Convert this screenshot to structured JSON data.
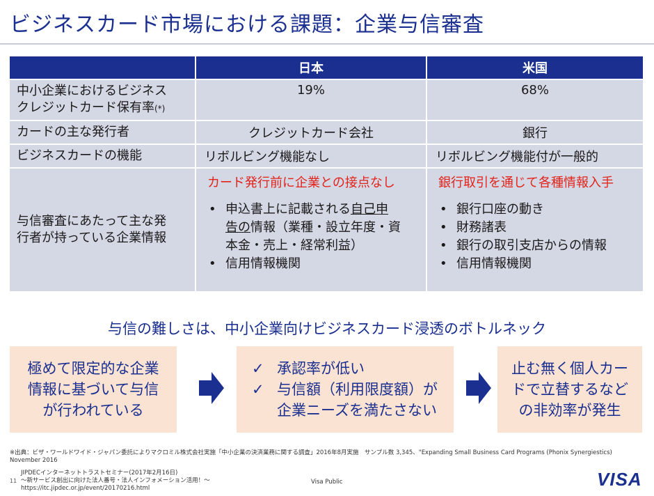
{
  "title": "ビジネスカード市場における課題：企業与信審査",
  "table": {
    "headers": [
      "",
      "日本",
      "米国"
    ],
    "rows": [
      {
        "label_line1": "中小企業におけるビジネス",
        "label_line2": "クレジットカード保有率",
        "label_note": "(*)",
        "japan": "19%",
        "us": "68%"
      },
      {
        "label": "カードの主な発行者",
        "japan": "クレジットカード会社",
        "us": "銀行"
      },
      {
        "label": "ビジネスカードの機能",
        "japan": "リボルビング機能なし",
        "us": "リボルビング機能付が一般的"
      },
      {
        "label_line1": "与信審査にあたって主な発",
        "label_line2": "行者が持っている企業情報",
        "japan_heading": "カード発行前に企業との接点なし",
        "japan_bullets": [
          {
            "line1_pre": "申込書上に記載される",
            "line1_underline": "自己申",
            "line2_underline": "告の",
            "line2_post": "情報（業種・設立年度・資",
            "line3": "本金・売上・経常利益）"
          },
          {
            "text": "信用情報機関"
          }
        ],
        "us_heading": "銀行取引を通じて各種情報入手",
        "us_bullets": [
          "銀行口座の動き",
          "財務諸表",
          "銀行の取引支店からの情報",
          "信用情報機関"
        ]
      }
    ]
  },
  "bottleneck": "与信の難しさは、中小企業向けビジネスカード浸透のボトルネック",
  "boxes": {
    "box1_lines": [
      "極めて限定的な企業",
      "情報に基づいて与信",
      "が行われている"
    ],
    "box2_items": [
      {
        "lines": [
          "承認率が低い"
        ]
      },
      {
        "lines": [
          "与信額（利用限度額）が",
          "企業ニーズを満たさない"
        ]
      }
    ],
    "box3_lines": [
      "止む無く個人カー",
      "ドで立替するなど",
      "の非効率が発生"
    ]
  },
  "footer": {
    "source_line1": "※出典：ビザ・ワールドワイド・ジャパン委託によりマクロミル株式会社実施「中小企業の決済業務に関する調査」2016年8月実施　サンプル数 3,345、\"Expanding Small Business Card Programs (Phonix Synergiestics)",
    "source_line2": "November 2016",
    "page_number": "11",
    "seminar_line1": "JIPDECインターネットトラストセミナー(2017年2月16日)",
    "seminar_line2": "～新サービス創出に向けた法人番号・法人インフォメーション活用！～",
    "seminar_line3": "https://itc.jipdec.or.jp/event/20170216.html",
    "visa_public": "Visa Public",
    "logo": "VISA"
  },
  "colors": {
    "navy": "#1a2f8f",
    "cell_bg": "#d4d7e4",
    "box_bg": "#fbe3d3",
    "red": "#e2231a"
  },
  "icons": [
    "check-icon",
    "arrow-right-icon"
  ]
}
